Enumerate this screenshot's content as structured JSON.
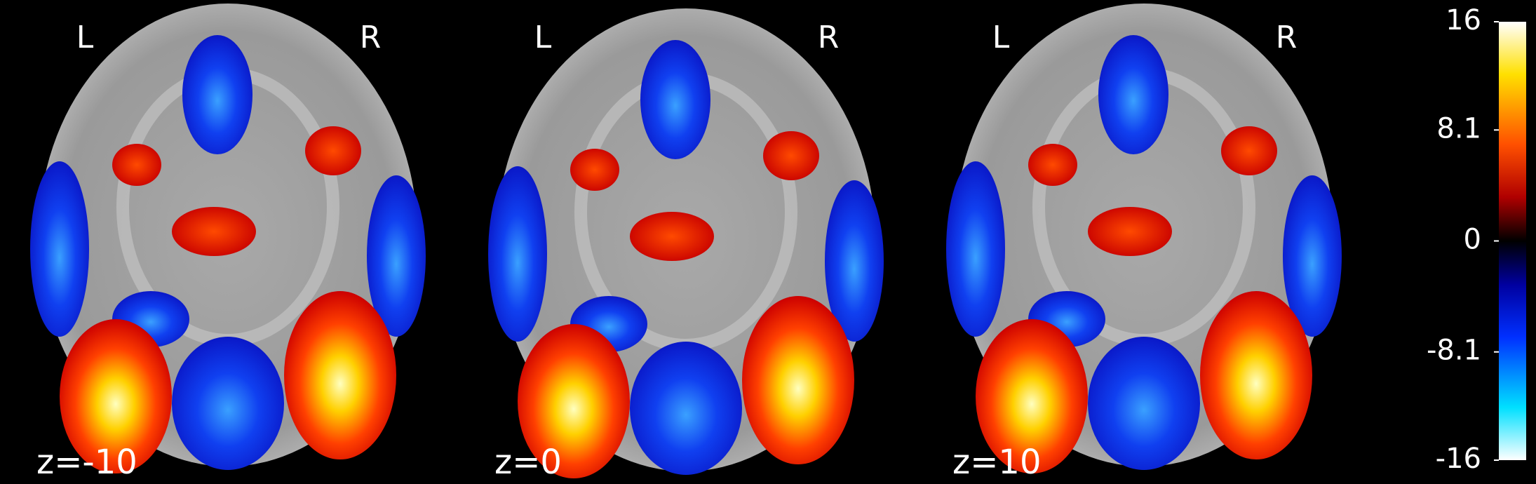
{
  "slices": [
    {
      "left": "L",
      "right": "R",
      "label": "z=-10"
    },
    {
      "left": "L",
      "right": "R",
      "label": "z=0"
    },
    {
      "left": "L",
      "right": "R",
      "label": "z=10"
    }
  ],
  "colorbar": {
    "ticks": [
      16,
      8.1,
      0,
      -8.1,
      -16
    ]
  }
}
